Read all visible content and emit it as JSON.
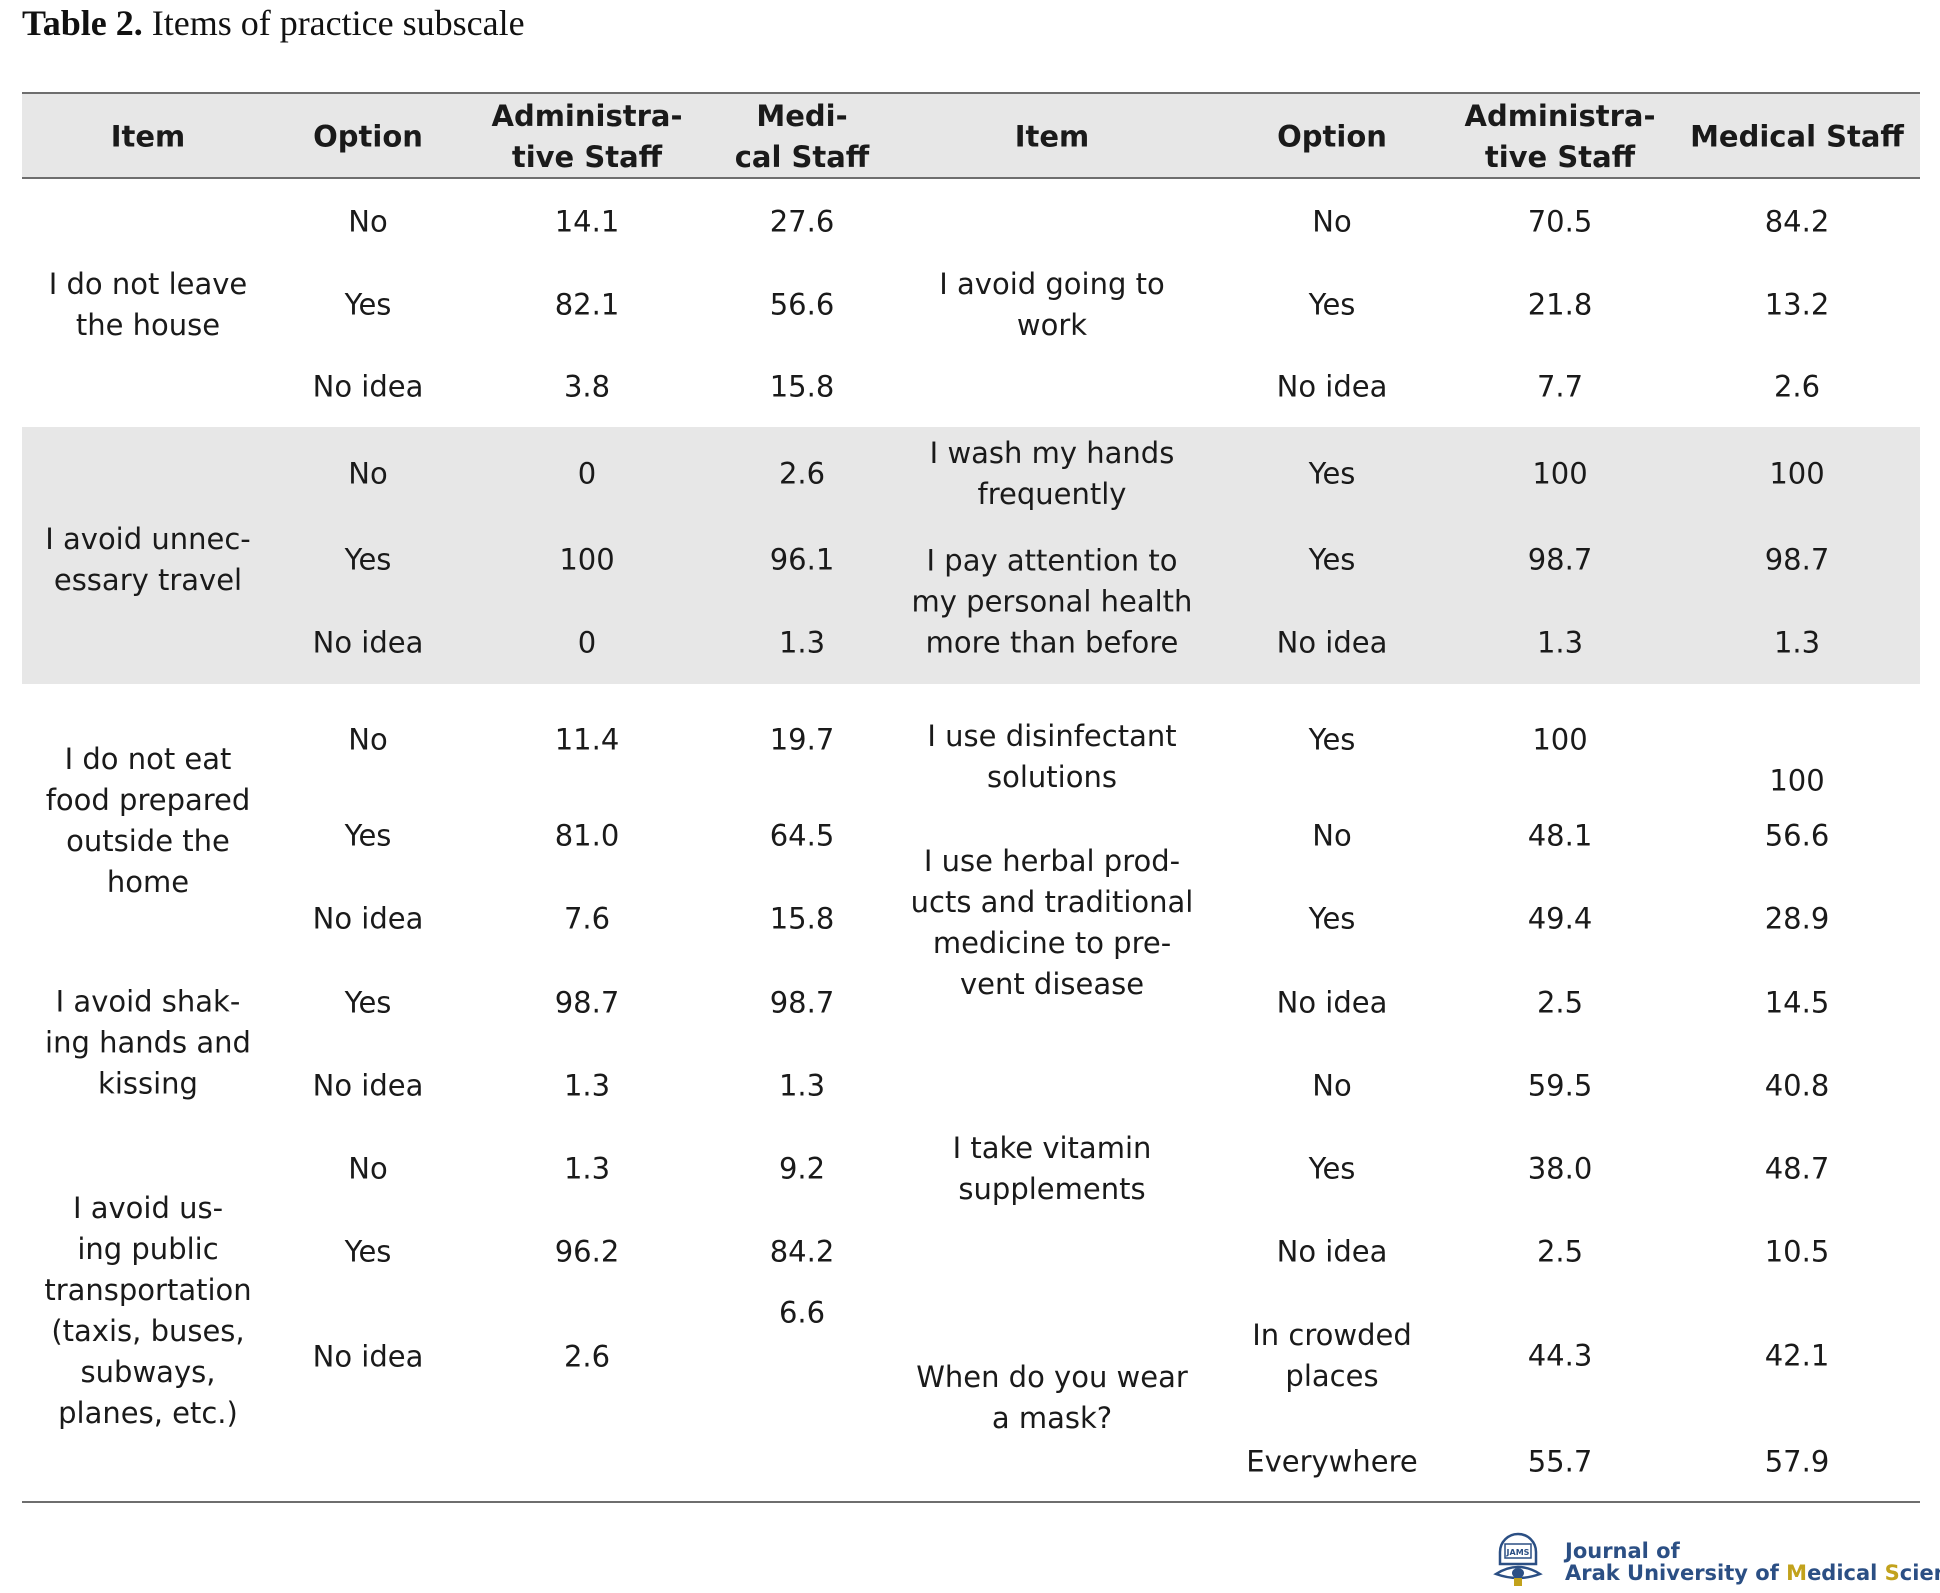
{
  "caption": {
    "label": "Table 2.",
    "text": " Items of practice subscale"
  },
  "table": {
    "headers": {
      "left": [
        "Item",
        "Option",
        "Administra-\ntive Staff",
        "Medi-\ncal Staff"
      ],
      "right": [
        "Item",
        "Option",
        "Administra-\ntive Staff",
        "Medical Staff"
      ]
    },
    "left_items": [
      "I do not leave\nthe house",
      "I avoid unnec-\nessary travel",
      "I do not eat\nfood prepared\noutside the\nhome",
      "I avoid shak-\ning hands and\nkissing",
      "I avoid us-\ning public\ntransportation\n(taxis, buses,\nsubways,\nplanes, etc.)"
    ],
    "left_rows": [
      [
        "No",
        "14.1",
        "27.6"
      ],
      [
        "Yes",
        "82.1",
        "56.6"
      ],
      [
        "No idea",
        "3.8",
        "15.8"
      ],
      [
        "No",
        "0",
        "2.6"
      ],
      [
        "Yes",
        "100",
        "96.1"
      ],
      [
        "No idea",
        "0",
        "1.3"
      ],
      [
        "No",
        "11.4",
        "19.7"
      ],
      [
        "Yes",
        "81.0",
        "64.5"
      ],
      [
        "No idea",
        "7.6",
        "15.8"
      ],
      [
        "Yes",
        "98.7",
        "98.7"
      ],
      [
        "No idea",
        "1.3",
        "1.3"
      ],
      [
        "No",
        "1.3",
        "9.2"
      ],
      [
        "Yes",
        "96.2",
        "84.2"
      ],
      [
        "No idea",
        "2.6",
        "6.6"
      ]
    ],
    "right_items": [
      "I avoid going to\nwork",
      "I wash my hands\nfrequently",
      "I pay attention to\nmy personal health\nmore than before",
      "I use disinfectant\nsolutions",
      "I use herbal prod-\nucts and traditional\nmedicine to pre-\nvent disease",
      "I take vitamin\nsupplements",
      "When do you wear\na mask?"
    ],
    "right_rows": [
      [
        "No",
        "70.5",
        "84.2"
      ],
      [
        "Yes",
        "21.8",
        "13.2"
      ],
      [
        "No idea",
        "7.7",
        "2.6"
      ],
      [
        "Yes",
        "100",
        "100"
      ],
      [
        "Yes",
        "98.7",
        "98.7"
      ],
      [
        "No idea",
        "1.3",
        "1.3"
      ],
      [
        "Yes",
        "100",
        "100"
      ],
      [
        "No",
        "48.1",
        "56.6"
      ],
      [
        "Yes",
        "49.4",
        "28.9"
      ],
      [
        "No idea",
        "2.5",
        "14.5"
      ],
      [
        "No",
        "59.5",
        "40.8"
      ],
      [
        "Yes",
        "38.0",
        "48.7"
      ],
      [
        "No idea",
        "2.5",
        "10.5"
      ],
      [
        "In crowded\nplaces",
        "44.3",
        "42.1"
      ],
      [
        "Everywhere",
        "55.7",
        "57.9"
      ]
    ]
  },
  "footer": {
    "logo_lettering": "JAMS",
    "journal_line1": "Journal of",
    "journal_line2_parts": [
      "Arak University of ",
      "M",
      "edical ",
      "S",
      "ciences"
    ]
  }
}
